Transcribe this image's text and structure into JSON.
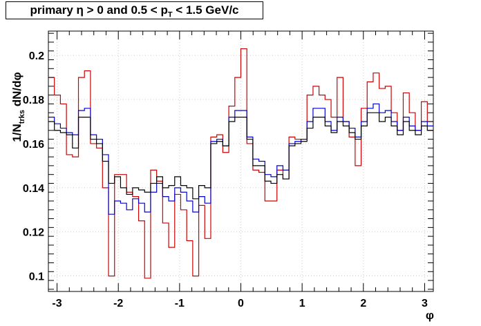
{
  "chart_data": {
    "type": "line",
    "title": "primary η > 0 and 0.5 < p_T < 1.5 GeV/c",
    "title_main": "primary η > 0 and 0.5 < p",
    "title_sub": "T",
    "title_tail": " < 1.5 GeV/c",
    "xlabel": "φ",
    "ylabel_prefix": "1/N",
    "ylabel_sub": "trks",
    "ylabel_suffix": " dN/dφ",
    "xlim": [
      -3.1416,
      3.1416
    ],
    "ylim": [
      0.093,
      0.211
    ],
    "grid": true,
    "x_ticks": [
      -3,
      -2,
      -1,
      0,
      1,
      2,
      3
    ],
    "y_ticks": [
      0.1,
      0.12,
      0.14,
      0.16,
      0.18,
      0.2
    ],
    "y_tick_labels": [
      "0.1",
      "0.12",
      "0.14",
      "0.16",
      "0.18",
      "0.2"
    ],
    "bins": 64,
    "series": [
      {
        "color": "#cc0000",
        "values": [
          0.19,
          0.182,
          0.178,
          0.155,
          0.154,
          0.19,
          0.193,
          0.16,
          0.158,
          0.14,
          0.1,
          0.146,
          0.146,
          0.138,
          0.136,
          0.125,
          0.099,
          0.148,
          0.143,
          0.124,
          0.113,
          0.137,
          0.13,
          0.116,
          0.1,
          0.132,
          0.117,
          0.163,
          0.164,
          0.156,
          0.177,
          0.19,
          0.203,
          0.16,
          0.148,
          0.147,
          0.134,
          0.134,
          0.148,
          0.144,
          0.163,
          0.162,
          0.162,
          0.182,
          0.186,
          0.182,
          0.18,
          0.172,
          0.19,
          0.17,
          0.163,
          0.15,
          0.176,
          0.188,
          0.192,
          0.185,
          0.186,
          0.174,
          0.166,
          0.183,
          0.174,
          0.166,
          0.179,
          0.17
        ]
      },
      {
        "color": "#0000cc",
        "values": [
          0.172,
          0.169,
          0.167,
          0.165,
          0.164,
          0.175,
          0.176,
          0.164,
          0.162,
          0.155,
          0.128,
          0.134,
          0.133,
          0.13,
          0.135,
          0.133,
          0.129,
          0.138,
          0.142,
          0.136,
          0.134,
          0.14,
          0.138,
          0.134,
          0.129,
          0.136,
          0.133,
          0.161,
          0.162,
          0.159,
          0.172,
          0.175,
          0.175,
          0.163,
          0.153,
          0.152,
          0.146,
          0.145,
          0.15,
          0.148,
          0.16,
          0.161,
          0.162,
          0.17,
          0.176,
          0.176,
          0.17,
          0.166,
          0.172,
          0.17,
          0.167,
          0.163,
          0.17,
          0.176,
          0.178,
          0.174,
          0.175,
          0.17,
          0.166,
          0.172,
          0.168,
          0.166,
          0.17,
          0.168
        ]
      },
      {
        "color": "#000000",
        "values": [
          0.17,
          0.166,
          0.165,
          0.164,
          0.158,
          0.172,
          0.172,
          0.162,
          0.16,
          0.152,
          0.142,
          0.145,
          0.14,
          0.137,
          0.14,
          0.139,
          0.138,
          0.142,
          0.145,
          0.14,
          0.141,
          0.145,
          0.141,
          0.14,
          0.135,
          0.141,
          0.14,
          0.16,
          0.161,
          0.159,
          0.17,
          0.172,
          0.172,
          0.162,
          0.15,
          0.15,
          0.143,
          0.142,
          0.146,
          0.144,
          0.159,
          0.16,
          0.161,
          0.167,
          0.172,
          0.172,
          0.168,
          0.165,
          0.17,
          0.168,
          0.165,
          0.162,
          0.168,
          0.174,
          0.174,
          0.17,
          0.172,
          0.168,
          0.164,
          0.17,
          0.166,
          0.164,
          0.168,
          0.166
        ]
      }
    ]
  }
}
